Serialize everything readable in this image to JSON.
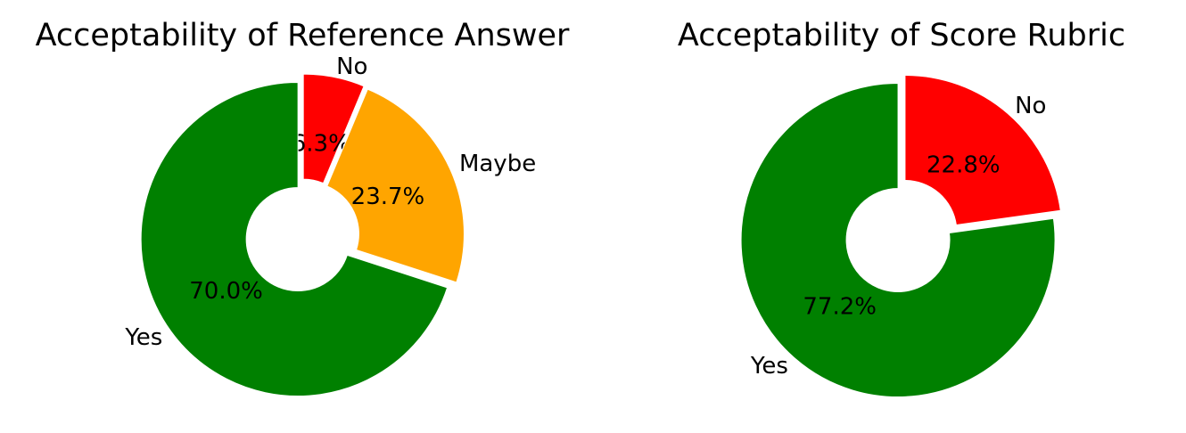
{
  "chart_data": [
    {
      "type": "pie",
      "title": "Acceptability of Reference Answer",
      "slices": [
        {
          "label": "No",
          "percent": 6.3,
          "pct_label": "6.3%",
          "color": "#ff0000"
        },
        {
          "label": "Maybe",
          "percent": 23.7,
          "pct_label": "23.7%",
          "color": "#ffa500"
        },
        {
          "label": "Yes",
          "percent": 70.0,
          "pct_label": "70.0%",
          "color": "#008000"
        }
      ]
    },
    {
      "type": "pie",
      "title": "Acceptability of Score Rubric",
      "slices": [
        {
          "label": "No",
          "percent": 22.8,
          "pct_label": "22.8%",
          "color": "#ff0000"
        },
        {
          "label": "Yes",
          "percent": 77.2,
          "pct_label": "77.2%",
          "color": "#008000"
        }
      ]
    }
  ]
}
